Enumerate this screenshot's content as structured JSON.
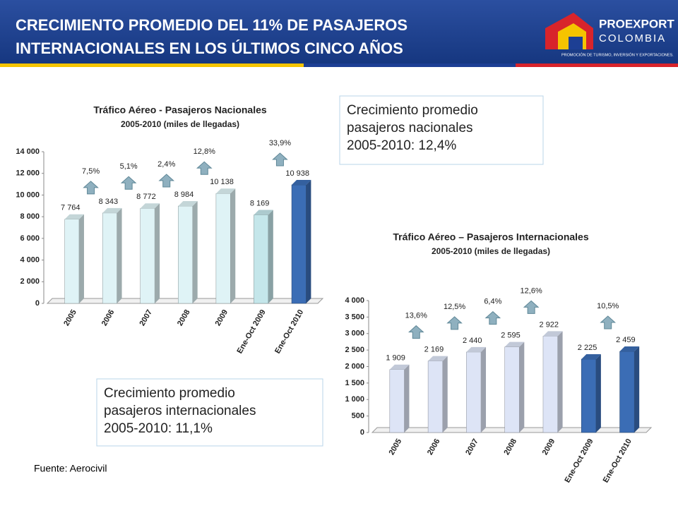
{
  "header": {
    "title_lines": [
      "CRECIMIENTO PROMEDIO DEL 11% DE PASAJEROS",
      "INTERNACIONALES EN LOS ÚLTIMOS CINCO AÑOS"
    ],
    "logo": {
      "name": "PROEXPORT",
      "country": "COLOMBIA",
      "tagline": "PROMOCIÓN DE TURISMO, INVERSIÓN Y EXPORTACIONES."
    }
  },
  "chart_data": [
    {
      "type": "bar",
      "title": "Tráfico Aéreo - Pasajeros Nacionales",
      "subtitle": "2005-2010 (miles de llegadas)",
      "categories": [
        "2005",
        "2006",
        "2007",
        "2008",
        "2009",
        "Ene-Oct 2009",
        "Ene-Oct 2010"
      ],
      "values": [
        7764,
        8343,
        8772,
        8984,
        10138,
        8169,
        10938
      ],
      "value_labels": [
        "7 764",
        "8 343",
        "8 772",
        "8 984",
        "10 138",
        "8 169",
        "10 938"
      ],
      "colors": [
        "#dff3f6",
        "#dff3f6",
        "#dff3f6",
        "#dff3f6",
        "#dff3f6",
        "#c4e6ea",
        "#3b6db5"
      ],
      "ylim": [
        0,
        14000
      ],
      "yticks": [
        0,
        {
          "value": 2000,
          "label": "2 000"
        },
        {
          "value": 4000,
          "label": "4 000"
        },
        {
          "value": 6000,
          "label": "6 000"
        },
        {
          "value": 8000,
          "label": "8 000"
        },
        {
          "value": 10000,
          "label": "10 000"
        },
        {
          "value": 12000,
          "label": "12 000"
        },
        {
          "value": 14000,
          "label": "14 000"
        }
      ],
      "annotations": [
        "7,5%",
        "5,1%",
        "2,4%",
        "12,8%",
        "33,9%"
      ]
    },
    {
      "type": "bar",
      "title": "Tráfico Aéreo – Pasajeros Internacionales",
      "subtitle": "2005-2010 (miles de llegadas)",
      "categories": [
        "2005",
        "2006",
        "2007",
        "2008",
        "2009",
        "Ene-Oct 2009",
        "Ene-Oct 2010"
      ],
      "values": [
        1909,
        2169,
        2440,
        2595,
        2922,
        2225,
        2459
      ],
      "value_labels": [
        "1 909",
        "2 169",
        "2 440",
        "2 595",
        "2 922",
        "2 225",
        "2 459"
      ],
      "colors": [
        "#dde4f6",
        "#dde4f6",
        "#dde4f6",
        "#dde4f6",
        "#dde4f6",
        "#3b6db5",
        "#3b6db5"
      ],
      "ylim": [
        0,
        4000
      ],
      "yticks": [
        0,
        500,
        {
          "value": 1000,
          "label": "1 000"
        },
        {
          "value": 1500,
          "label": "1 500"
        },
        {
          "value": 2000,
          "label": "2 000"
        },
        {
          "value": 2500,
          "label": "2 500"
        },
        {
          "value": 3000,
          "label": "3 000"
        },
        {
          "value": 3500,
          "label": "3 500"
        },
        {
          "value": 4000,
          "label": "4 000"
        }
      ],
      "annotations": [
        "13,6%",
        "12,5%",
        "6,4%",
        "12,6%",
        "10,5%"
      ]
    }
  ],
  "notes": [
    [
      "Crecimiento promedio",
      "pasajeros  nacionales",
      "2005-2010:  12,4%"
    ],
    [
      "Crecimiento promedio",
      "pasajeros  internacionales",
      "2005-2010:  11,1%"
    ]
  ],
  "source": "Fuente: Aerocivil"
}
